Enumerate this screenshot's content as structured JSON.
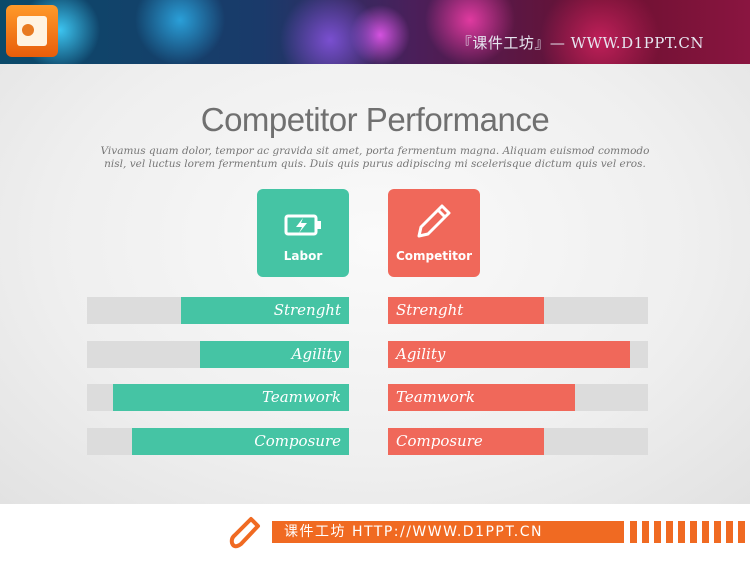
{
  "header": {
    "text": "『课件工坊』— WWW.D1PPT.CN",
    "logo": "powerpoint-logo-icon"
  },
  "title": "Competitor Performance",
  "subtitle": [
    "Vivamus quam dolor, tempor ac gravida sit amet, porta fermentum magna. Aliquam euismod commodo",
    "nisl, vel luctus lorem fermentum quis. Duis quis purus adipiscing mi scelerisque dictum quis vel eros."
  ],
  "colors": {
    "labor": "#45c4a4",
    "competitor": "#f0685a",
    "track": "#dcdcdc"
  },
  "chart_data": {
    "type": "bar",
    "categories": [
      "Strenght",
      "Agility",
      "Teamwork",
      "Composure"
    ],
    "series": [
      {
        "name": "Labor",
        "icon": "battery-charging-icon",
        "values": [
          64,
          57,
          90,
          83
        ]
      },
      {
        "name": "Competitor",
        "icon": "pencil-icon",
        "values": [
          60,
          93,
          72,
          60
        ]
      }
    ],
    "ylim": [
      0,
      100
    ]
  },
  "footer": {
    "text": "课件工坊 HTTP://WWW.D1PPT.CN",
    "icon": "pencil-icon"
  }
}
